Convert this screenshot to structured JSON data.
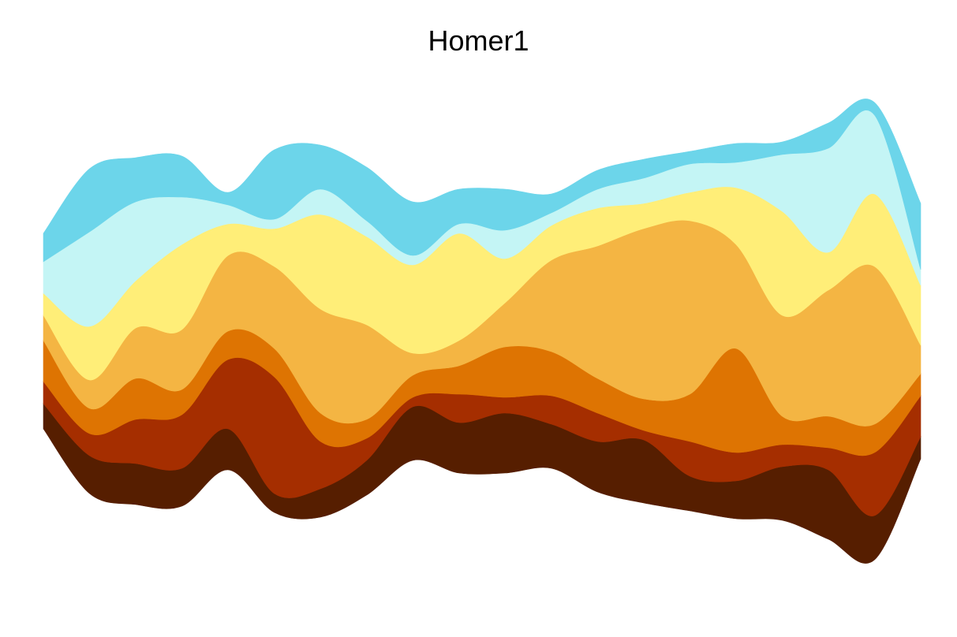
{
  "chart_data": {
    "type": "area",
    "title": "Homer1",
    "xlabel": "",
    "ylabel": "",
    "grid": false,
    "legend": "none",
    "axes_visible": false,
    "baseline": "streamgraph",
    "x": [
      1,
      2,
      3,
      4,
      5,
      6,
      7,
      8,
      9,
      10,
      11,
      12,
      13,
      14,
      15,
      16,
      17,
      18,
      19,
      20
    ],
    "series": [
      {
        "color": "#561E00",
        "values": [
          40,
          60,
          65,
          60,
          65,
          30,
          45,
          55,
          85,
          80,
          95,
          70,
          80,
          100,
          55,
          60,
          85,
          110,
          70,
          35
        ]
      },
      {
        "color": "#A52E00",
        "values": [
          35,
          35,
          70,
          85,
          110,
          185,
          75,
          35,
          15,
          45,
          25,
          45,
          45,
          15,
          55,
          45,
          35,
          35,
          100,
          65
        ]
      },
      {
        "color": "#DE7402",
        "values": [
          65,
          40,
          65,
          40,
          45,
          45,
          45,
          30,
          35,
          45,
          80,
          70,
          55,
          50,
          75,
          165,
          45,
          50,
          45,
          35
        ]
      },
      {
        "color": "#F4B543",
        "values": [
          40,
          45,
          80,
          95,
          120,
          130,
          165,
          150,
          35,
          40,
          70,
          145,
          210,
          270,
          275,
          165,
          160,
          200,
          250,
          45
        ]
      },
      {
        "color": "#FFEE78",
        "values": [
          35,
          85,
          75,
          135,
          50,
          60,
          150,
          140,
          140,
          170,
          70,
          55,
          60,
          40,
          45,
          90,
          165,
          60,
          115,
          95
        ]
      },
      {
        "color": "#C4F5F5",
        "values": [
          50,
          150,
          125,
          75,
          30,
          15,
          40,
          25,
          15,
          15,
          45,
          20,
          30,
          40,
          45,
          40,
          90,
          165,
          125,
          25
        ]
      },
      {
        "color": "#6CD5EA",
        "values": [
          45,
          100,
          70,
          65,
          20,
          110,
          70,
          85,
          85,
          55,
          65,
          30,
          30,
          30,
          20,
          30,
          20,
          40,
          20,
          105
        ]
      }
    ]
  }
}
